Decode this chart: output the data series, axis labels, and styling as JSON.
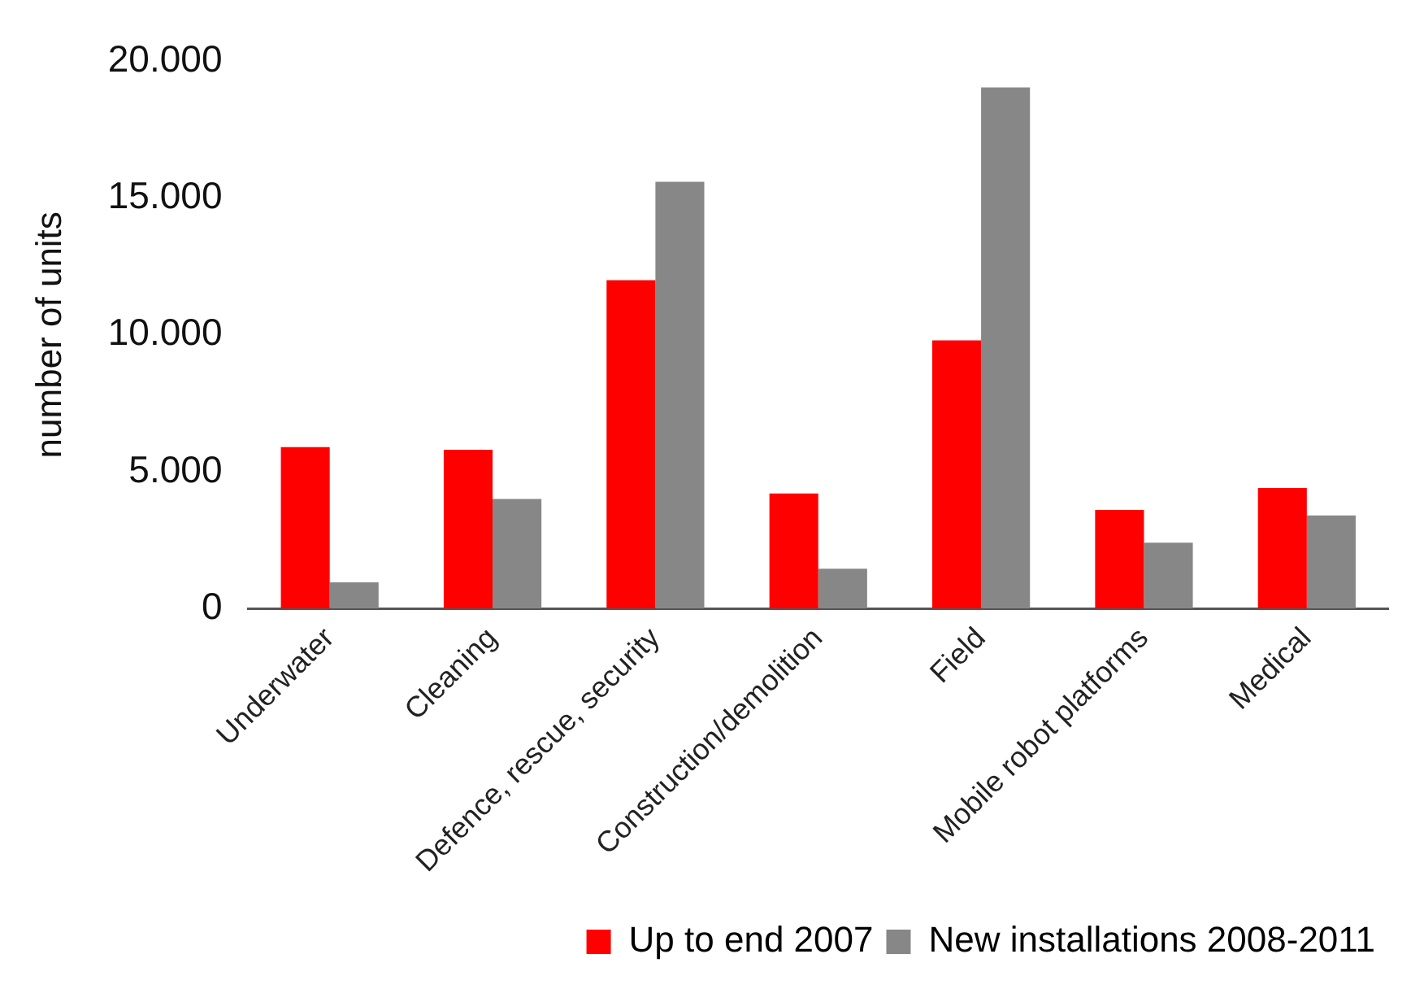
{
  "chart_data": {
    "type": "bar",
    "categories": [
      "Underwater",
      "Cleaning",
      "Defence, rescue, security",
      "Construction/demolition",
      "Field",
      "Mobile robot platforms",
      "Medical"
    ],
    "series": [
      {
        "name": "Up to end 2007",
        "color": "#ff0000",
        "values": [
          5900,
          5800,
          12000,
          4200,
          9800,
          3600,
          4400
        ]
      },
      {
        "name": "New installations 2008-2011",
        "color": "#878787",
        "values": [
          950,
          4000,
          15600,
          1450,
          19050,
          2400,
          3400
        ]
      }
    ],
    "ylabel": "number of units",
    "ylim": [
      0,
      20000
    ],
    "yticks": [
      0,
      {
        "value": 5000,
        "label": "5.000"
      },
      {
        "value": 10000,
        "label": "10.000"
      },
      {
        "value": 15000,
        "label": "15.000"
      },
      {
        "value": 20000,
        "label": "20.000"
      }
    ],
    "legend": "bottom right"
  }
}
